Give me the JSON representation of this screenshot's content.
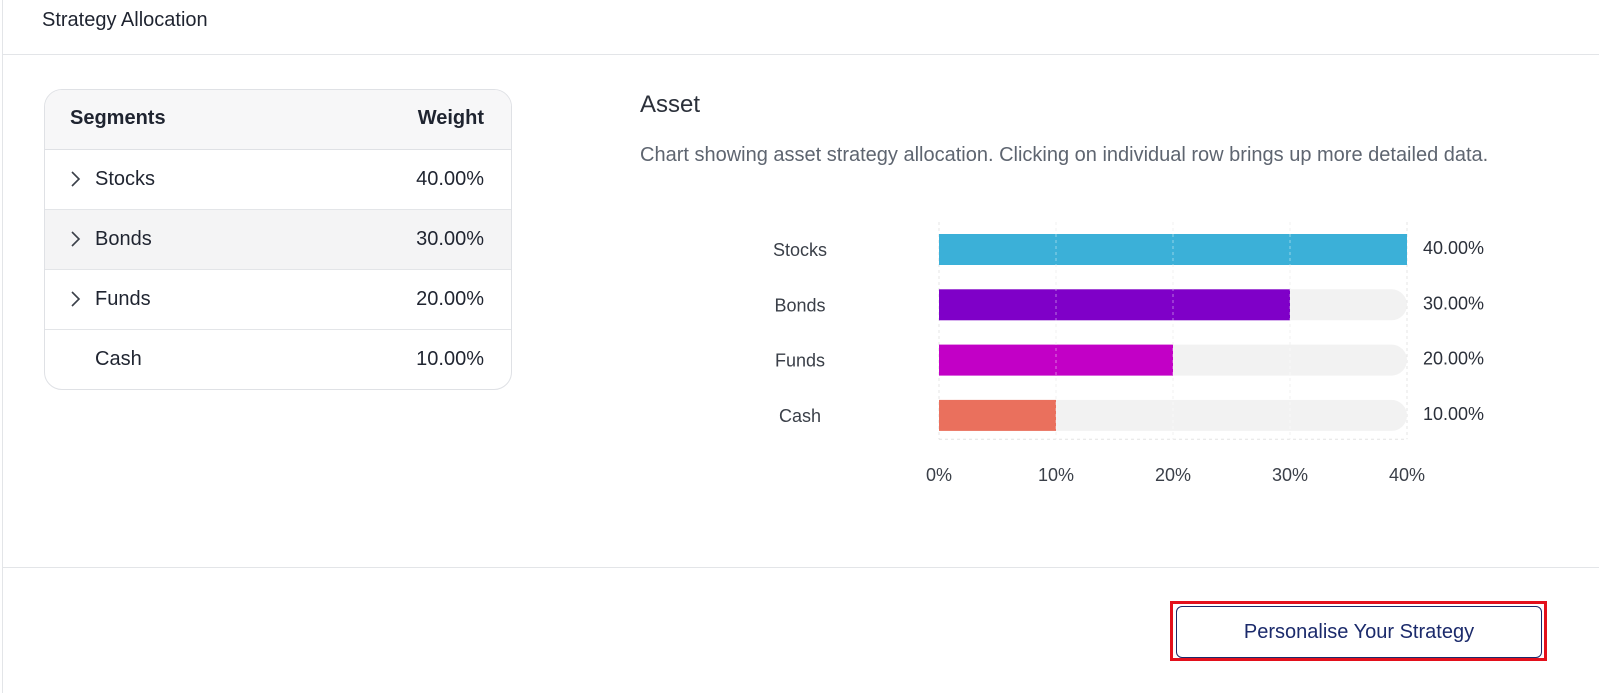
{
  "header": {
    "title": "Strategy Allocation"
  },
  "table": {
    "col_segments": "Segments",
    "col_weight": "Weight",
    "rows": [
      {
        "name": "Stocks",
        "weight": "40.00%",
        "expandable": true
      },
      {
        "name": "Bonds",
        "weight": "30.00%",
        "expandable": true
      },
      {
        "name": "Funds",
        "weight": "20.00%",
        "expandable": true
      },
      {
        "name": "Cash",
        "weight": "10.00%",
        "expandable": false
      }
    ]
  },
  "asset": {
    "title": "Asset",
    "description": "Chart showing asset strategy allocation. Clicking on individual row brings up more detailed data."
  },
  "chart_data": {
    "type": "bar",
    "orientation": "horizontal",
    "categories": [
      "Stocks",
      "Bonds",
      "Funds",
      "Cash"
    ],
    "values": [
      40,
      30,
      20,
      10
    ],
    "value_labels": [
      "40.00%",
      "30.00%",
      "20.00%",
      "10.00%"
    ],
    "colors": [
      "#3bb0d8",
      "#7f00c8",
      "#c200c6",
      "#ea705d"
    ],
    "track_color": "#f2f2f2",
    "xlim": [
      0,
      40
    ],
    "x_ticks": [
      0,
      10,
      20,
      30,
      40
    ],
    "x_tick_labels": [
      "0%",
      "10%",
      "20%",
      "30%",
      "40%"
    ],
    "grid": true
  },
  "footer": {
    "cta_label": "Personalise Your Strategy"
  }
}
